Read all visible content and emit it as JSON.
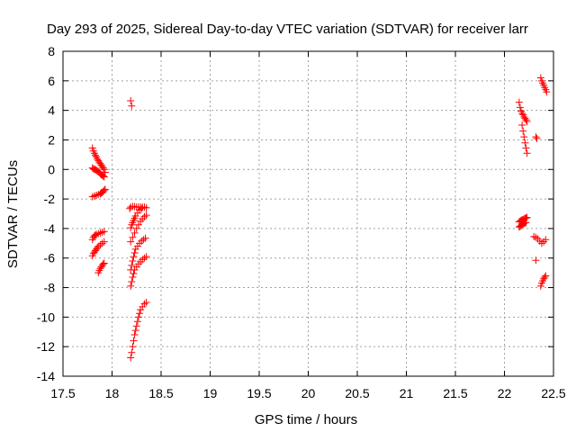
{
  "chart_data": {
    "type": "scatter",
    "title": "Day 293 of 2025, Sidereal Day-to-day VTEC variation (SDTVAR) for receiver larr",
    "xlabel": "GPS time / hours",
    "ylabel": "SDTVAR / TECUs",
    "xlim": [
      17.5,
      22.5
    ],
    "ylim": [
      -14,
      8
    ],
    "x_ticks": [
      17.5,
      18,
      18.5,
      19,
      19.5,
      20,
      20.5,
      21,
      21.5,
      22,
      22.5
    ],
    "y_ticks": [
      -14,
      -12,
      -10,
      -8,
      -6,
      -4,
      -2,
      0,
      2,
      4,
      6,
      8
    ],
    "x_tick_labels": [
      "17.5",
      "18",
      "18.5",
      "19",
      "19.5",
      "20",
      "20.5",
      "21",
      "21.5",
      "22",
      "22.5"
    ],
    "y_tick_labels": [
      "-14",
      "-12",
      "-10",
      "-8",
      "-6",
      "-4",
      "-2",
      "0",
      "2",
      "4",
      "6",
      "8"
    ],
    "grid": true,
    "marker": "plus",
    "marker_color": "#ff0000",
    "series": [
      {
        "points": [
          [
            17.8,
            1.45
          ],
          [
            17.81,
            1.25
          ],
          [
            17.82,
            1.1
          ],
          [
            17.83,
            0.95
          ],
          [
            17.84,
            0.85
          ],
          [
            17.85,
            0.7
          ],
          [
            17.86,
            0.6
          ],
          [
            17.87,
            0.5
          ],
          [
            17.88,
            0.4
          ],
          [
            17.89,
            0.3
          ],
          [
            17.9,
            0.2
          ],
          [
            17.91,
            0.1
          ],
          [
            17.92,
            0.0
          ],
          [
            17.93,
            -0.2
          ],
          [
            17.8,
            0.1
          ],
          [
            17.81,
            0.05
          ],
          [
            17.82,
            0.0
          ],
          [
            17.83,
            0.0
          ],
          [
            17.84,
            -0.05
          ],
          [
            17.85,
            -0.1
          ],
          [
            17.86,
            -0.15
          ],
          [
            17.87,
            -0.2
          ],
          [
            17.88,
            -0.3
          ],
          [
            17.89,
            -0.35
          ],
          [
            17.9,
            -0.4
          ],
          [
            17.91,
            -0.45
          ],
          [
            17.92,
            -0.5
          ],
          [
            17.8,
            -1.85
          ],
          [
            17.82,
            -1.8
          ],
          [
            17.84,
            -1.75
          ],
          [
            17.86,
            -1.7
          ],
          [
            17.88,
            -1.65
          ],
          [
            17.89,
            -1.6
          ],
          [
            17.9,
            -1.55
          ],
          [
            17.91,
            -1.5
          ],
          [
            17.92,
            -1.4
          ],
          [
            17.93,
            -1.35
          ],
          [
            17.8,
            -4.75
          ],
          [
            17.81,
            -4.6
          ],
          [
            17.82,
            -4.5
          ],
          [
            17.83,
            -4.45
          ],
          [
            17.84,
            -4.4
          ],
          [
            17.86,
            -4.35
          ],
          [
            17.88,
            -4.3
          ],
          [
            17.9,
            -4.25
          ],
          [
            17.92,
            -4.2
          ],
          [
            17.8,
            -5.85
          ],
          [
            17.81,
            -5.7
          ],
          [
            17.82,
            -5.6
          ],
          [
            17.83,
            -5.5
          ],
          [
            17.84,
            -5.4
          ],
          [
            17.85,
            -5.3
          ],
          [
            17.86,
            -5.2
          ],
          [
            17.88,
            -5.1
          ],
          [
            17.9,
            -5.0
          ],
          [
            17.92,
            -4.9
          ],
          [
            17.86,
            -7.0
          ],
          [
            17.87,
            -6.85
          ],
          [
            17.88,
            -6.7
          ],
          [
            17.89,
            -6.6
          ],
          [
            17.9,
            -6.5
          ],
          [
            17.91,
            -6.4
          ],
          [
            17.92,
            -6.35
          ],
          [
            18.19,
            4.65
          ],
          [
            18.2,
            4.3
          ],
          [
            18.18,
            -2.65
          ],
          [
            18.19,
            -2.55
          ],
          [
            18.21,
            -2.5
          ],
          [
            18.23,
            -2.52
          ],
          [
            18.25,
            -2.55
          ],
          [
            18.27,
            -2.55
          ],
          [
            18.29,
            -2.55
          ],
          [
            18.31,
            -2.55
          ],
          [
            18.33,
            -2.55
          ],
          [
            18.35,
            -2.6
          ],
          [
            18.19,
            -3.95
          ],
          [
            18.2,
            -3.75
          ],
          [
            18.21,
            -3.6
          ],
          [
            18.22,
            -3.45
          ],
          [
            18.23,
            -3.3
          ],
          [
            18.24,
            -3.15
          ],
          [
            18.26,
            -2.95
          ],
          [
            18.28,
            -2.75
          ],
          [
            18.3,
            -2.65
          ],
          [
            18.19,
            -4.9
          ],
          [
            18.21,
            -4.6
          ],
          [
            18.23,
            -4.3
          ],
          [
            18.25,
            -4.0
          ],
          [
            18.27,
            -3.75
          ],
          [
            18.29,
            -3.5
          ],
          [
            18.31,
            -3.35
          ],
          [
            18.33,
            -3.2
          ],
          [
            18.35,
            -3.1
          ],
          [
            18.19,
            -6.8
          ],
          [
            18.2,
            -6.5
          ],
          [
            18.21,
            -6.2
          ],
          [
            18.22,
            -5.9
          ],
          [
            18.23,
            -5.65
          ],
          [
            18.24,
            -5.4
          ],
          [
            18.26,
            -5.2
          ],
          [
            18.28,
            -5.0
          ],
          [
            18.3,
            -4.85
          ],
          [
            18.32,
            -4.75
          ],
          [
            18.34,
            -4.65
          ],
          [
            18.19,
            -7.9
          ],
          [
            18.2,
            -7.6
          ],
          [
            18.21,
            -7.3
          ],
          [
            18.22,
            -7.05
          ],
          [
            18.23,
            -6.8
          ],
          [
            18.25,
            -6.6
          ],
          [
            18.27,
            -6.4
          ],
          [
            18.29,
            -6.25
          ],
          [
            18.31,
            -6.1
          ],
          [
            18.33,
            -6.0
          ],
          [
            18.35,
            -5.9
          ],
          [
            18.19,
            -12.75
          ],
          [
            18.2,
            -12.4
          ],
          [
            18.21,
            -12.0
          ],
          [
            18.22,
            -11.6
          ],
          [
            18.23,
            -11.2
          ],
          [
            18.24,
            -10.9
          ],
          [
            18.25,
            -10.6
          ],
          [
            18.26,
            -10.3
          ],
          [
            18.27,
            -10.0
          ],
          [
            18.28,
            -9.75
          ],
          [
            18.29,
            -9.5
          ],
          [
            18.31,
            -9.3
          ],
          [
            18.33,
            -9.1
          ],
          [
            18.35,
            -9.0
          ],
          [
            22.15,
            4.55
          ],
          [
            22.16,
            4.2
          ],
          [
            22.17,
            3.95
          ],
          [
            22.18,
            3.8
          ],
          [
            22.19,
            3.7
          ],
          [
            22.2,
            3.55
          ],
          [
            22.21,
            3.45
          ],
          [
            22.22,
            3.35
          ],
          [
            22.23,
            3.25
          ],
          [
            22.18,
            3.0
          ],
          [
            22.19,
            2.6
          ],
          [
            22.2,
            2.2
          ],
          [
            22.21,
            1.8
          ],
          [
            22.22,
            1.45
          ],
          [
            22.23,
            1.1
          ],
          [
            22.32,
            2.2
          ],
          [
            22.33,
            2.1
          ],
          [
            22.37,
            6.2
          ],
          [
            22.38,
            6.0
          ],
          [
            22.39,
            5.85
          ],
          [
            22.4,
            5.7
          ],
          [
            22.41,
            5.55
          ],
          [
            22.42,
            5.4
          ],
          [
            22.43,
            5.25
          ],
          [
            22.15,
            -3.55
          ],
          [
            22.16,
            -3.5
          ],
          [
            22.17,
            -3.45
          ],
          [
            22.18,
            -3.4
          ],
          [
            22.19,
            -3.4
          ],
          [
            22.2,
            -3.35
          ],
          [
            22.21,
            -3.3
          ],
          [
            22.22,
            -3.3
          ],
          [
            22.23,
            -3.25
          ],
          [
            22.15,
            -3.9
          ],
          [
            22.16,
            -3.85
          ],
          [
            22.17,
            -3.8
          ],
          [
            22.18,
            -3.75
          ],
          [
            22.19,
            -3.7
          ],
          [
            22.2,
            -3.65
          ],
          [
            22.21,
            -3.6
          ],
          [
            22.22,
            -3.6
          ],
          [
            22.3,
            -4.55
          ],
          [
            22.32,
            -4.6
          ],
          [
            22.34,
            -4.7
          ],
          [
            22.36,
            -4.85
          ],
          [
            22.38,
            -5.0
          ],
          [
            22.4,
            -4.9
          ],
          [
            22.42,
            -4.75
          ],
          [
            22.32,
            -6.15
          ],
          [
            22.37,
            -7.9
          ],
          [
            22.38,
            -7.7
          ],
          [
            22.39,
            -7.55
          ],
          [
            22.4,
            -7.4
          ],
          [
            22.41,
            -7.3
          ],
          [
            22.42,
            -7.2
          ]
        ]
      }
    ]
  }
}
